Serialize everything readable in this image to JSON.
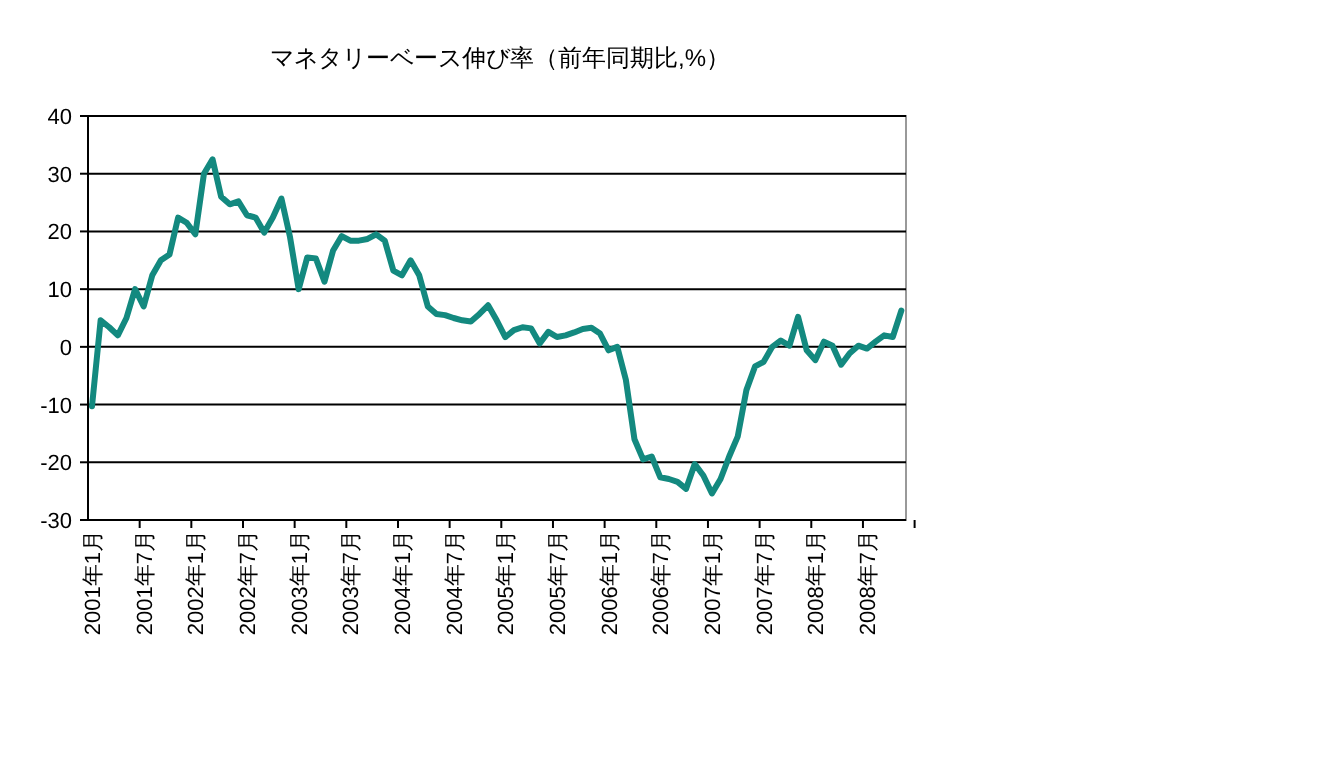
{
  "chart_data": {
    "type": "line",
    "title": "マネタリーベース伸び率（前年同期比,%）",
    "categories": [
      "2001年1月",
      null,
      null,
      null,
      null,
      null,
      "2001年7月",
      null,
      null,
      null,
      null,
      null,
      "2002年1月",
      null,
      null,
      null,
      null,
      null,
      "2002年7月",
      null,
      null,
      null,
      null,
      null,
      "2003年1月",
      null,
      null,
      null,
      null,
      null,
      "2003年7月",
      null,
      null,
      null,
      null,
      null,
      "2004年1月",
      null,
      null,
      null,
      null,
      null,
      "2004年7月",
      null,
      null,
      null,
      null,
      null,
      "2005年1月",
      null,
      null,
      null,
      null,
      null,
      "2005年7月",
      null,
      null,
      null,
      null,
      null,
      "2006年1月",
      null,
      null,
      null,
      null,
      null,
      "2006年7月",
      null,
      null,
      null,
      null,
      null,
      "2007年1月",
      null,
      null,
      null,
      null,
      null,
      "2007年7月",
      null,
      null,
      null,
      null,
      null,
      "2008年1月",
      null,
      null,
      null,
      null,
      null,
      "2008年7月",
      null,
      null,
      null,
      null
    ],
    "series": [
      {
        "color": "#13897f",
        "values": [
          -10.3,
          4.6,
          3.4,
          2,
          5,
          10,
          7,
          12.4,
          15,
          16,
          22.4,
          21.5,
          19.5,
          30,
          32.5,
          26,
          24.7,
          25.2,
          22.8,
          22.4,
          19.8,
          22.4,
          25.7,
          19,
          10,
          15.5,
          15.3,
          11.3,
          16.7,
          19.2,
          18.4,
          18.4,
          18.7,
          19.5,
          18.4,
          13.2,
          12.4,
          15,
          12.4,
          7,
          5.7,
          5.5,
          5,
          4.6,
          4.4,
          5.7,
          7.2,
          4.6,
          1.7,
          2.9,
          3.4,
          3.2,
          0.6,
          2.6,
          1.7,
          2,
          2.5,
          3.1,
          3.3,
          2.3,
          -0.6,
          0,
          -5.7,
          -16,
          -19.5,
          -19,
          -22.6,
          -22.9,
          -23.4,
          -24.6,
          -20.3,
          -22.3,
          -25.4,
          -22.9,
          -19,
          -15.5,
          -7.5,
          -3.4,
          -2.6,
          0,
          1.1,
          0.2,
          5.2,
          -0.6,
          -2.3,
          0.9,
          0.2,
          -3.1,
          -1.1,
          0.2,
          -0.3,
          0.9,
          2,
          1.7,
          6.3
        ]
      }
    ],
    "ylim": [
      -30,
      40
    ],
    "yticks": [
      -30,
      -20,
      -10,
      0,
      10,
      20,
      30,
      40
    ],
    "grid": "y",
    "marker": "none",
    "line_style": "solid"
  }
}
